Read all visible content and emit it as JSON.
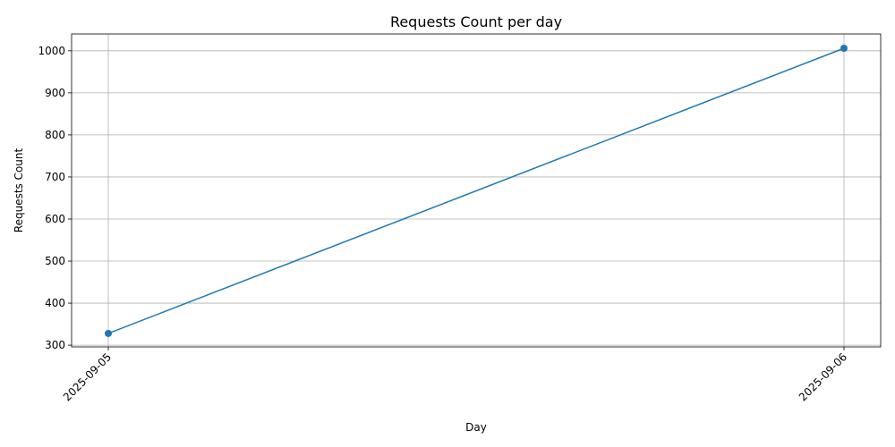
{
  "chart_data": {
    "type": "line",
    "title": "Requests Count per day",
    "xlabel": "Day",
    "ylabel": "Requests Count",
    "x": [
      "2025-09-05",
      "2025-09-06"
    ],
    "series": [
      {
        "values": [
          328,
          1006
        ],
        "color": "#1f77b4",
        "marker": "circle"
      }
    ],
    "ylim": [
      296,
      1040
    ],
    "yticks": [
      300,
      400,
      500,
      600,
      700,
      800,
      900,
      1000
    ],
    "grid": true,
    "legend": "none"
  }
}
